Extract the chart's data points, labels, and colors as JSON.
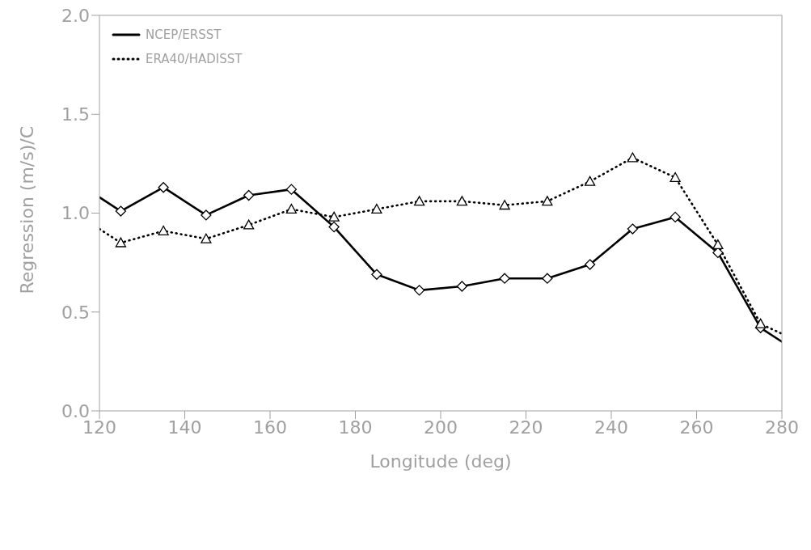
{
  "chart_data": {
    "type": "line",
    "xlabel": "Longitude (deg)",
    "ylabel": "Regression (m/s)/C",
    "x": [
      120,
      125,
      135,
      145,
      155,
      165,
      175,
      185,
      195,
      205,
      215,
      225,
      235,
      245,
      255,
      265,
      275,
      280
    ],
    "series": [
      {
        "name": "NCEP/ERSST",
        "color": "#000000",
        "line_style": "solid",
        "marker": "diamond",
        "values": [
          1.08,
          1.01,
          1.13,
          0.99,
          1.09,
          1.12,
          0.93,
          0.69,
          0.61,
          0.63,
          0.67,
          0.67,
          0.74,
          0.92,
          0.98,
          0.8,
          0.42,
          0.35
        ]
      },
      {
        "name": "ERA40/HADISST",
        "color": "#000000",
        "line_style": "dotted",
        "marker": "triangle",
        "values": [
          0.92,
          0.85,
          0.91,
          0.87,
          0.94,
          1.02,
          0.98,
          1.02,
          1.06,
          1.06,
          1.04,
          1.06,
          1.16,
          1.28,
          1.18,
          0.84,
          0.44,
          0.39
        ]
      }
    ],
    "xlim": [
      120,
      280
    ],
    "xticks": [
      120,
      140,
      160,
      180,
      200,
      220,
      240,
      260,
      280
    ],
    "ylim": [
      0,
      2
    ],
    "yticks": [
      {
        "value": 0,
        "label": "0.0"
      },
      {
        "value": 0.5,
        "label": "0.5"
      },
      {
        "value": 1,
        "label": "1.0"
      },
      {
        "value": 1.5,
        "label": "1.5"
      },
      {
        "value": 2,
        "label": "2.0"
      }
    ],
    "grid": false,
    "legend": "top left"
  }
}
